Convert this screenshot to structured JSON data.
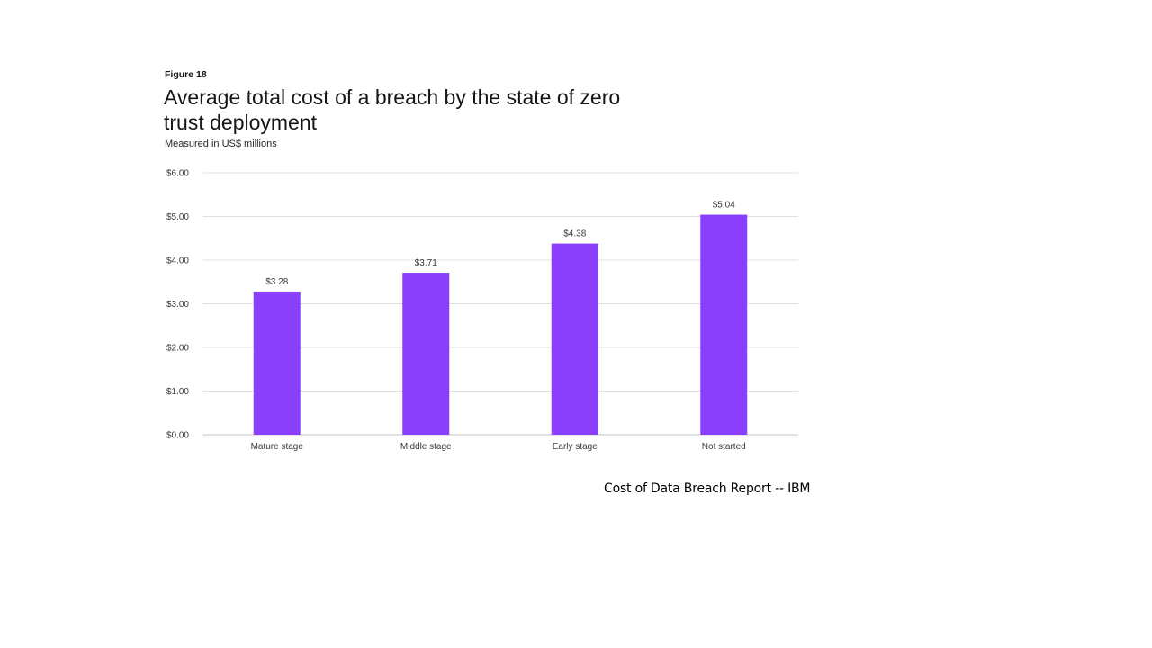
{
  "figure_label": "Figure 18",
  "source": "Cost of Data Breach Report -- IBM",
  "colors": {
    "bar": "#8a3ffc",
    "grid": "#e0e0e0",
    "axis": "#c6c6c6",
    "text": "#393939"
  },
  "chart_data": {
    "type": "bar",
    "title": "Average total cost of a breach by the state of zero trust deployment",
    "subtitle": "Measured in US$ millions",
    "categories": [
      "Mature stage",
      "Middle stage",
      "Early stage",
      "Not started"
    ],
    "values": [
      3.28,
      3.71,
      4.38,
      5.04
    ],
    "data_labels": [
      "$3.28",
      "$3.71",
      "$4.38",
      "$5.04"
    ],
    "ylim": [
      0,
      6
    ],
    "yticks": [
      0,
      1,
      2,
      3,
      4,
      5,
      6
    ],
    "ytick_labels": [
      "$0.00",
      "$1.00",
      "$2.00",
      "$3.00",
      "$4.00",
      "$5.00",
      "$6.00"
    ],
    "xlabel": "",
    "ylabel": "",
    "grid": true,
    "legend": "none"
  }
}
